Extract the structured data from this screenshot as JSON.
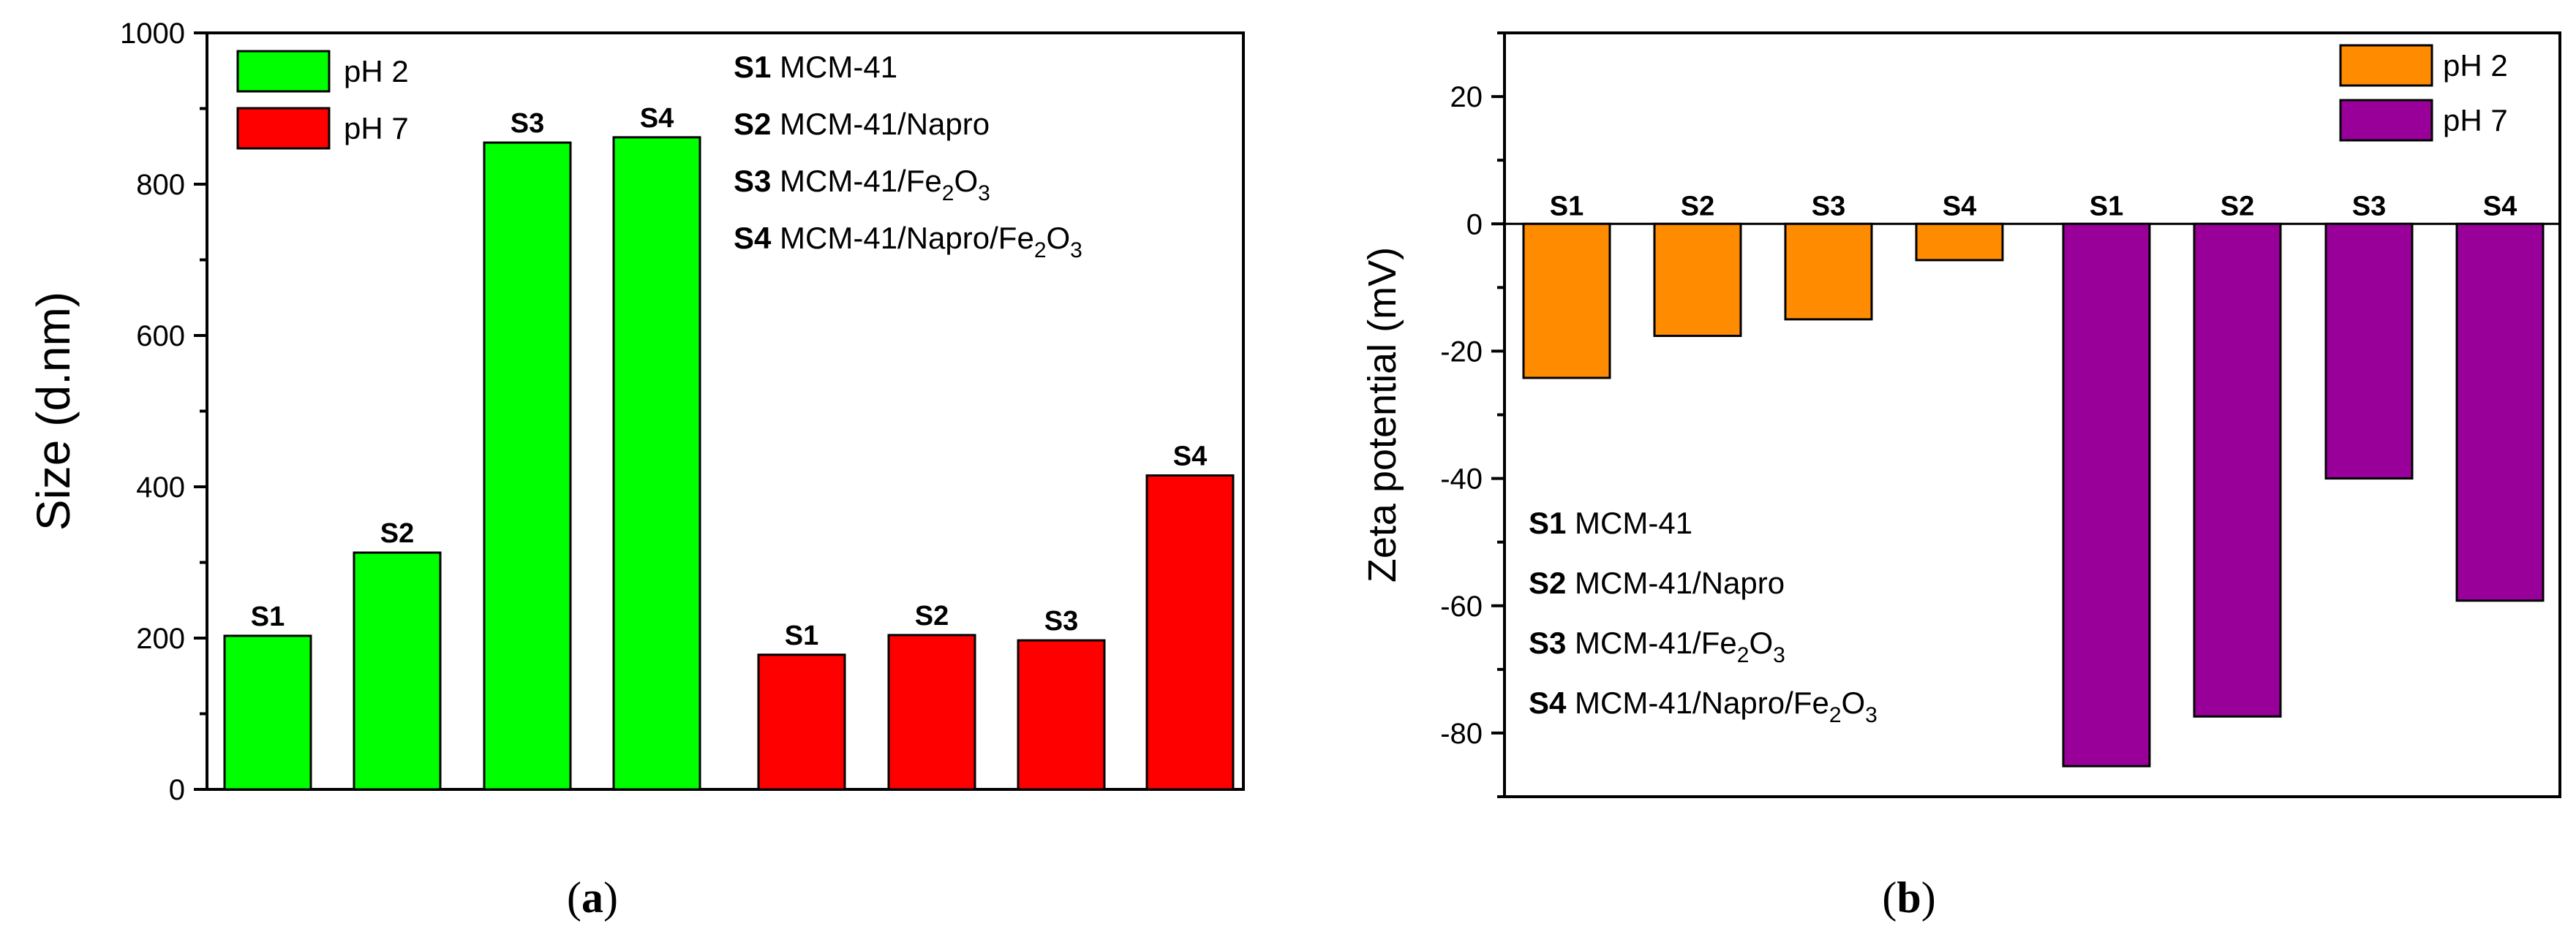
{
  "chart_data": [
    {
      "type": "bar",
      "panel_label": {
        "open": "(",
        "letter": "a",
        "close": ")"
      },
      "ylabel": "Size (d.nm)",
      "xlabel": "",
      "ylim": [
        0,
        1000
      ],
      "yticks": [
        0,
        200,
        400,
        600,
        800,
        1000
      ],
      "legend_position": "top-left",
      "series": [
        {
          "name": "pH 2",
          "color": "#00ff00",
          "categories": [
            "S1",
            "S2",
            "S3",
            "S4"
          ],
          "values": [
            203,
            313,
            855,
            862
          ]
        },
        {
          "name": "pH 7",
          "color": "#ff0000",
          "categories": [
            "S1",
            "S2",
            "S3",
            "S4"
          ],
          "values": [
            178,
            204,
            197,
            415
          ]
        }
      ],
      "key": [
        {
          "code": "S1",
          "parts": [
            {
              "t": "MCM-41"
            }
          ]
        },
        {
          "code": "S2",
          "parts": [
            {
              "t": "MCM-41/Napro"
            }
          ]
        },
        {
          "code": "S3",
          "parts": [
            {
              "t": "MCM-41/Fe"
            },
            {
              "t": "2",
              "sub": true
            },
            {
              "t": "O"
            },
            {
              "t": "3",
              "sub": true
            }
          ]
        },
        {
          "code": "S4",
          "parts": [
            {
              "t": "MCM-41/Napro/Fe"
            },
            {
              "t": "2",
              "sub": true
            },
            {
              "t": "O"
            },
            {
              "t": "3",
              "sub": true
            }
          ]
        }
      ]
    },
    {
      "type": "bar",
      "panel_label": {
        "open": "(",
        "letter": "b",
        "close": ")"
      },
      "ylabel": "Zeta potential (mV)",
      "xlabel": "",
      "ylim": [
        -90,
        30
      ],
      "yticks": [
        -80,
        -60,
        -40,
        -20,
        0,
        20
      ],
      "legend_position": "top-right",
      "series": [
        {
          "name": "pH 2",
          "color": "#ff8c00",
          "categories": [
            "S1",
            "S2",
            "S3",
            "S4"
          ],
          "values": [
            -24.2,
            -17.6,
            -15.0,
            -5.7
          ]
        },
        {
          "name": "pH 7",
          "color": "#990099",
          "categories": [
            "S1",
            "S2",
            "S3",
            "S4"
          ],
          "values": [
            -85.2,
            -77.4,
            -40.0,
            -59.2
          ]
        }
      ],
      "key": [
        {
          "code": "S1",
          "parts": [
            {
              "t": "MCM-41"
            }
          ]
        },
        {
          "code": "S2",
          "parts": [
            {
              "t": "MCM-41/Napro"
            }
          ]
        },
        {
          "code": "S3",
          "parts": [
            {
              "t": "MCM-41/Fe"
            },
            {
              "t": "2",
              "sub": true
            },
            {
              "t": "O"
            },
            {
              "t": "3",
              "sub": true
            }
          ]
        },
        {
          "code": "S4",
          "parts": [
            {
              "t": "MCM-41/Napro/Fe"
            },
            {
              "t": "2",
              "sub": true
            },
            {
              "t": "O"
            },
            {
              "t": "3",
              "sub": true
            }
          ]
        }
      ]
    }
  ]
}
